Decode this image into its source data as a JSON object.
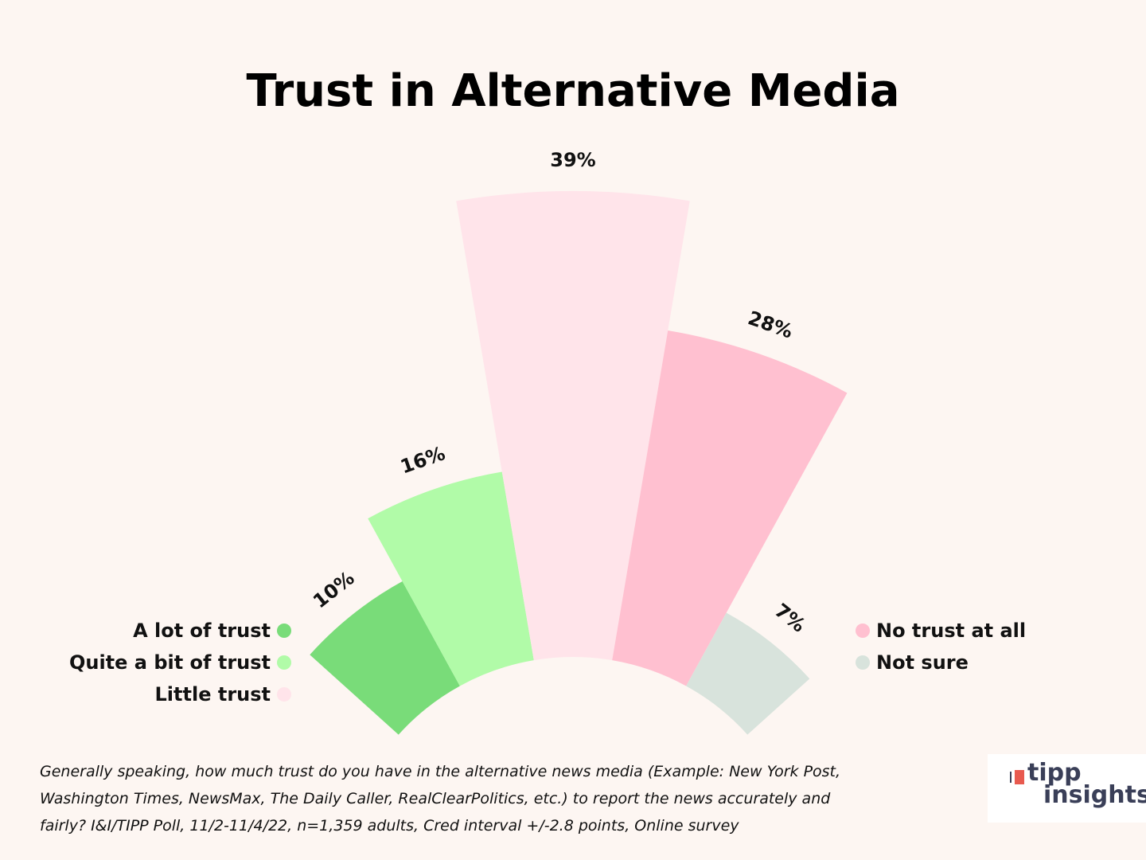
{
  "title": "Trust in Alternative Media",
  "chart_data": {
    "type": "radial-bar",
    "title": "Trust in Alternative Media",
    "categories": [
      "A lot of trust",
      "Quite a bit of trust",
      "Little trust",
      "No trust at all",
      "Not sure"
    ],
    "values": [
      10,
      16,
      39,
      28,
      7
    ],
    "value_labels": [
      "10%",
      "16%",
      "39%",
      "28%",
      "7%"
    ],
    "colors": [
      "#79dc79",
      "#b1fba8",
      "#ffe4ea",
      "#ffc0d0",
      "#d8e3dc"
    ],
    "legend": {
      "left": [
        {
          "label": "A lot of trust",
          "color": "#79dc79"
        },
        {
          "label": "Quite a bit of trust",
          "color": "#b1fba8"
        },
        {
          "label": "Little trust",
          "color": "#ffe4ea"
        }
      ],
      "right": [
        {
          "label": "No trust at all",
          "color": "#ffc0d0"
        },
        {
          "label": "Not sure",
          "color": "#d8e3dc"
        }
      ]
    }
  },
  "footnote": [
    "Generally speaking, how much trust do you have in the alternative news  media (Example: New York Post,",
    "Washington Times, NewsMax, The Daily  Caller, RealClearPolitics, etc.) to report the news accurately and",
    "fairly? I&I/TIPP Poll, 11/2-11/4/22, n=1,359 adults, Cred interval +/-2.8 points, Online survey"
  ],
  "logo": {
    "line1": "tipp",
    "line2": "insights"
  }
}
